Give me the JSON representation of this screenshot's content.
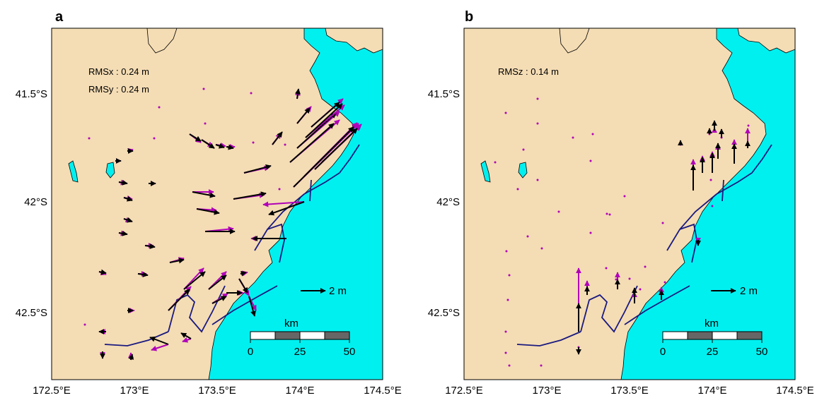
{
  "panels": [
    {
      "label": "a",
      "rms": [
        "RMSx : 0.24 m",
        "RMSy : 0.24 m"
      ],
      "legend_arrow_label": "2 m",
      "scale_unit": "km",
      "scale_ticks": [
        "0",
        "25",
        "50"
      ],
      "y_ticks": [
        "41.5°S",
        "42°S",
        "42.5°S"
      ],
      "x_ticks": [
        "172.5°E",
        "173°E",
        "173.5°E",
        "174°E",
        "174.5°E"
      ]
    },
    {
      "label": "b",
      "rms": [
        "RMSz : 0.14 m"
      ],
      "legend_arrow_label": "2 m",
      "scale_unit": "km",
      "scale_ticks": [
        "0",
        "25",
        "50"
      ],
      "y_ticks": [
        "41.5°S",
        "42°S",
        "42.5°S"
      ],
      "x_ticks": [
        "172.5°E",
        "173°E",
        "173.5°E",
        "174°E",
        "174.5°E"
      ]
    }
  ],
  "colors": {
    "land": "#f4dcb4",
    "sea": "#00f0f0",
    "observed": "#000000",
    "modeled": "#b000b8",
    "fault": "#1a1a80"
  }
}
